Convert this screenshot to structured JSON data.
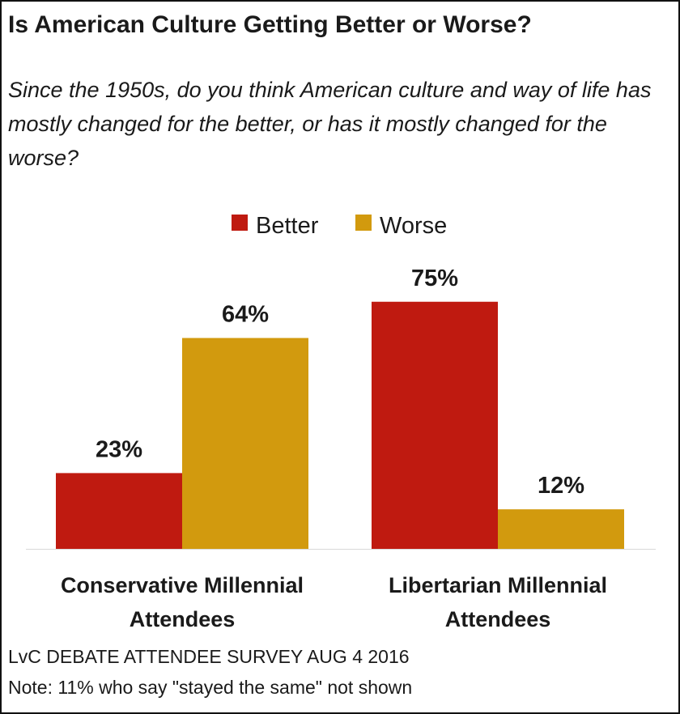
{
  "title": "Is American Culture Getting Better or Worse?",
  "subtitle": "Since the 1950s, do you think American culture and way of life has mostly changed for the better, or has it mostly changed for the worse?",
  "colors": {
    "better": "#BF1A10",
    "worse": "#D29A0E",
    "text": "#1a1a1a"
  },
  "chart_data": {
    "type": "bar",
    "title": "Is American Culture Getting Better or Worse?",
    "categories": [
      [
        "Conservative Millennial",
        "Attendees"
      ],
      [
        "Libertarian Millennial",
        "Attendees"
      ]
    ],
    "series": [
      {
        "name": "Better",
        "values": [
          23,
          75
        ],
        "labels": [
          "23%",
          "75%"
        ]
      },
      {
        "name": "Worse",
        "values": [
          64,
          12
        ],
        "labels": [
          "64%",
          "12%"
        ]
      }
    ],
    "ylim": [
      0,
      100
    ],
    "xlabel": "",
    "ylabel": "",
    "grid": false,
    "legend": "top-center"
  },
  "source": "LvC DEBATE ATTENDEE SURVEY AUG 4 2016",
  "note": "Note: 11% who say \"stayed the same\" not shown"
}
